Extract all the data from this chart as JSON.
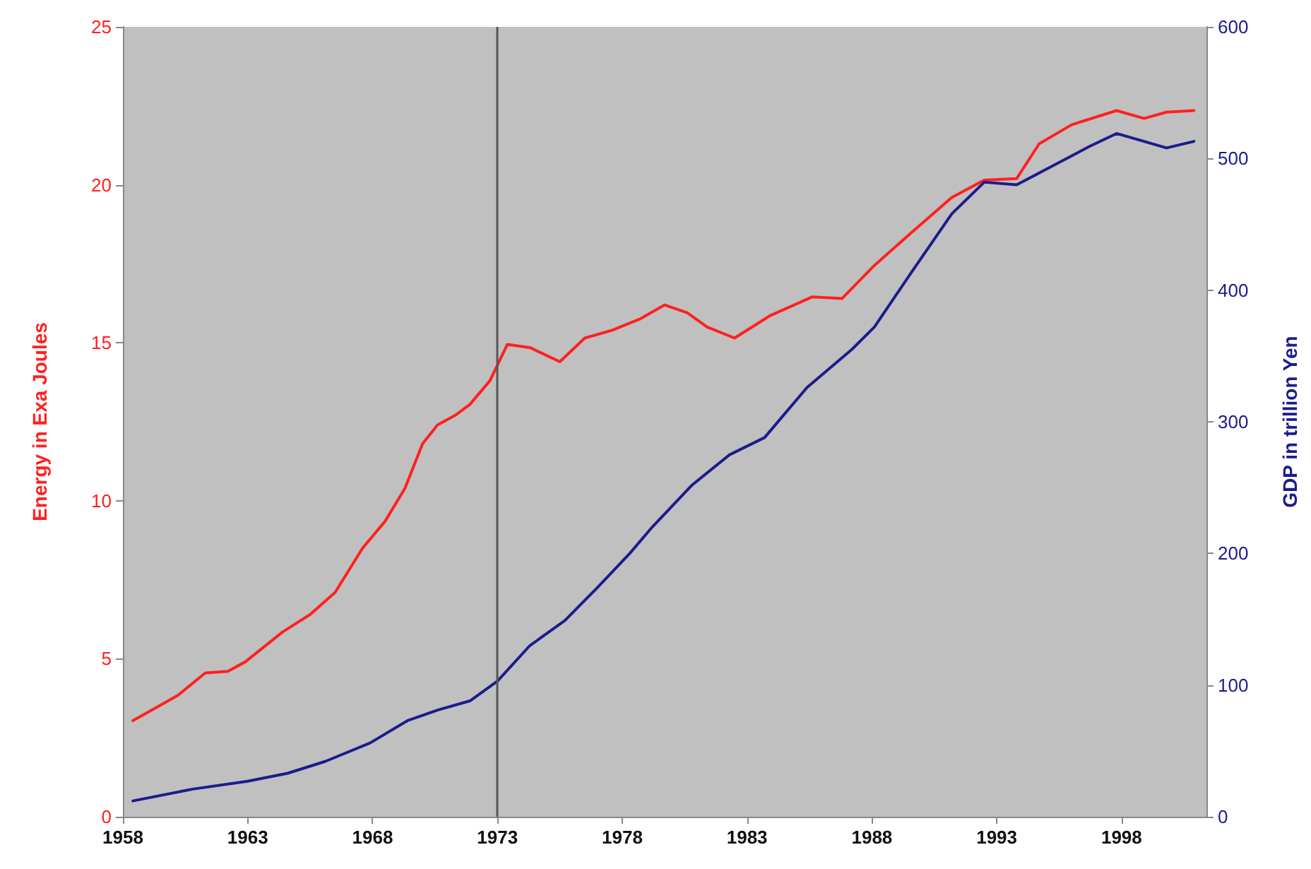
{
  "chart_data": {
    "type": "line",
    "ylabel": "Energy in Exa Joules",
    "y2label": "GDP in trillion Yen",
    "xlim": [
      1958,
      2001.4
    ],
    "xticks": [
      1958,
      1963,
      1968,
      1973,
      1978,
      1983,
      1988,
      1993,
      1998
    ],
    "ylim": [
      0,
      25
    ],
    "yticks": [
      0,
      5,
      10,
      15,
      20,
      25
    ],
    "y2lim": [
      0,
      600
    ],
    "y2ticks": [
      0,
      100,
      200,
      300,
      400,
      500,
      600
    ],
    "ref_lines": [
      {
        "axis": "x",
        "value": 1973,
        "color": "#555555"
      }
    ],
    "series": [
      {
        "color": "#ff2020",
        "x": [
          1958.4,
          1960.2,
          1961.3,
          1962.2,
          1962.9,
          1964.4,
          1965.5,
          1966.5,
          1967.6,
          1968.5,
          1969.3,
          1970.0,
          1970.6,
          1971.3,
          1971.9,
          1972.7,
          1973.4,
          1974.3,
          1975.5,
          1976.5,
          1977.6,
          1978.7,
          1979.7,
          1980.6,
          1981.4,
          1982.5,
          1983.9,
          1985.6,
          1986.8,
          1988.1,
          1989.6,
          1991.2,
          1992.5,
          1993.8,
          1994.7,
          1996.0,
          1997.8,
          1998.9,
          1999.8,
          2000.9
        ],
        "values": [
          3.04,
          3.84,
          4.55,
          4.6,
          4.9,
          5.85,
          6.4,
          7.1,
          8.5,
          9.35,
          10.4,
          11.8,
          12.4,
          12.7,
          13.05,
          13.8,
          14.95,
          14.85,
          14.4,
          15.15,
          15.4,
          15.75,
          16.2,
          15.95,
          15.5,
          15.15,
          15.85,
          16.45,
          16.4,
          17.45,
          18.5,
          19.6,
          20.15,
          20.2,
          21.3,
          21.9,
          22.35,
          22.1,
          22.3,
          22.35
        ]
      },
      {
        "color": "#1c1c8c",
        "axis": "y2",
        "x": [
          1958.4,
          1960.8,
          1963.0,
          1964.6,
          1966.1,
          1967.9,
          1969.4,
          1970.6,
          1971.9,
          1973.0,
          1974.3,
          1975.7,
          1977.0,
          1978.3,
          1979.2,
          1980.8,
          1982.3,
          1983.7,
          1985.4,
          1987.2,
          1988.1,
          1989.6,
          1991.2,
          1992.5,
          1993.8,
          1995.2,
          1996.7,
          1997.8,
          1998.9,
          1999.8,
          2000.9
        ],
        "values": [
          12,
          21,
          27,
          33,
          42,
          56,
          73,
          81,
          88,
          103,
          130,
          149,
          174,
          200,
          220,
          252,
          275,
          288,
          326,
          355,
          372,
          414,
          458,
          482,
          480,
          494,
          509,
          519,
          513,
          508,
          513
        ]
      }
    ]
  }
}
